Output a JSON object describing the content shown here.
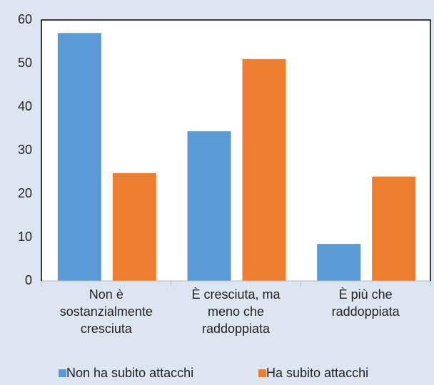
{
  "chart_data": {
    "type": "bar",
    "categories": [
      "Non è sostanzialmente cresciuta",
      "È cresciuta, ma meno che raddoppiata",
      "È più che raddoppiata"
    ],
    "series": [
      {
        "name": "Non ha subito attacchi",
        "color": "#5b9bd5",
        "values": [
          57,
          34.4,
          8.5
        ]
      },
      {
        "name": "Ha subito attacchi",
        "color": "#ed7d31",
        "values": [
          24.8,
          51,
          24
        ]
      }
    ],
    "ylim": [
      0,
      60
    ],
    "yticks": [
      0,
      10,
      20,
      30,
      40,
      50,
      60
    ],
    "grid": false,
    "legend": "bottom"
  }
}
